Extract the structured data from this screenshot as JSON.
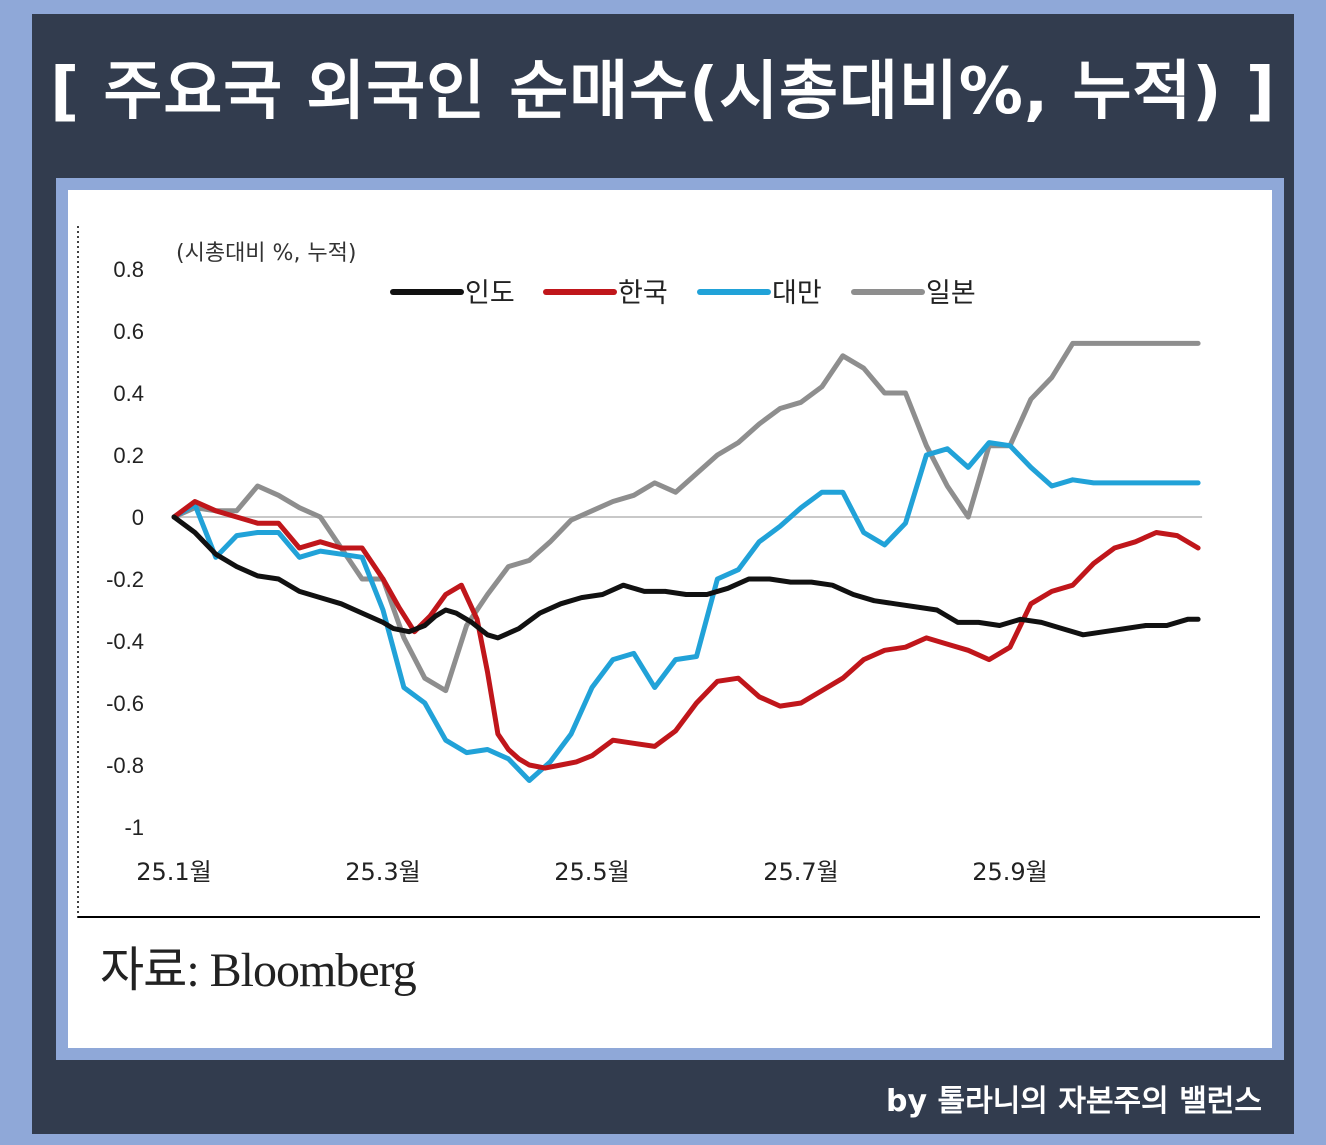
{
  "title": "[ 주요국 외국인 순매수(시총대비%, 누적) ]",
  "source": "자료: Bloomberg",
  "credit": "by 톨라니의 자본주의 밸런스",
  "chart_data": {
    "type": "line",
    "title": "",
    "unit_label": "(시총대비 %, 누적)",
    "ylim": [
      -1,
      0.8
    ],
    "y_ticks": [
      0.8,
      0.6,
      0.4,
      0.2,
      0,
      -0.2,
      -0.4,
      -0.6,
      -0.8,
      -1
    ],
    "y_tick_labels": [
      "0.8",
      "0.6",
      "0.4",
      "0.2",
      "0",
      "-0.2",
      "-0.4",
      "-0.6",
      "-0.8",
      "-1"
    ],
    "x_ticks": [
      0,
      2,
      4,
      6,
      8
    ],
    "x_tick_labels": [
      "25.1월",
      "25.3월",
      "25.5월",
      "25.7월",
      "25.9월"
    ],
    "xlim": [
      0,
      9.8
    ],
    "x_unit": "months since 25.1월",
    "zero_line": true,
    "legend": "top",
    "series": [
      {
        "name": "인도",
        "color": "#111111",
        "x": [
          0,
          0.2,
          0.4,
          0.6,
          0.8,
          1.0,
          1.2,
          1.4,
          1.6,
          1.8,
          2.0,
          2.1,
          2.25,
          2.4,
          2.5,
          2.6,
          2.7,
          2.85,
          3.0,
          3.1,
          3.3,
          3.5,
          3.7,
          3.9,
          4.1,
          4.3,
          4.5,
          4.7,
          4.9,
          5.1,
          5.3,
          5.5,
          5.7,
          5.9,
          6.1,
          6.3,
          6.5,
          6.7,
          6.9,
          7.1,
          7.3,
          7.5,
          7.7,
          7.9,
          8.1,
          8.3,
          8.5,
          8.7,
          8.9,
          9.1,
          9.3,
          9.5,
          9.7,
          9.8
        ],
        "y": [
          0,
          -0.05,
          -0.12,
          -0.16,
          -0.19,
          -0.2,
          -0.24,
          -0.26,
          -0.28,
          -0.31,
          -0.34,
          -0.36,
          -0.37,
          -0.35,
          -0.32,
          -0.3,
          -0.31,
          -0.34,
          -0.38,
          -0.39,
          -0.36,
          -0.31,
          -0.28,
          -0.26,
          -0.25,
          -0.22,
          -0.24,
          -0.24,
          -0.25,
          -0.25,
          -0.23,
          -0.2,
          -0.2,
          -0.21,
          -0.21,
          -0.22,
          -0.25,
          -0.27,
          -0.28,
          -0.29,
          -0.3,
          -0.34,
          -0.34,
          -0.35,
          -0.33,
          -0.34,
          -0.36,
          -0.38,
          -0.37,
          -0.36,
          -0.35,
          -0.35,
          -0.33,
          -0.33
        ]
      },
      {
        "name": "한국",
        "color": "#c0161b",
        "x": [
          0,
          0.2,
          0.4,
          0.6,
          0.8,
          1.0,
          1.2,
          1.4,
          1.6,
          1.8,
          2.0,
          2.15,
          2.3,
          2.45,
          2.6,
          2.75,
          2.9,
          3.0,
          3.1,
          3.2,
          3.3,
          3.4,
          3.55,
          3.7,
          3.85,
          4.0,
          4.2,
          4.4,
          4.6,
          4.8,
          5.0,
          5.2,
          5.4,
          5.6,
          5.8,
          6.0,
          6.2,
          6.4,
          6.6,
          6.8,
          7.0,
          7.2,
          7.4,
          7.6,
          7.8,
          8.0,
          8.2,
          8.4,
          8.6,
          8.8,
          9.0,
          9.2,
          9.4,
          9.6,
          9.8
        ],
        "y": [
          0,
          0.05,
          0.02,
          0.0,
          -0.02,
          -0.02,
          -0.1,
          -0.08,
          -0.1,
          -0.1,
          -0.2,
          -0.29,
          -0.37,
          -0.32,
          -0.25,
          -0.22,
          -0.33,
          -0.5,
          -0.7,
          -0.75,
          -0.78,
          -0.8,
          -0.81,
          -0.8,
          -0.79,
          -0.77,
          -0.72,
          -0.73,
          -0.74,
          -0.69,
          -0.6,
          -0.53,
          -0.52,
          -0.58,
          -0.61,
          -0.6,
          -0.56,
          -0.52,
          -0.46,
          -0.43,
          -0.42,
          -0.39,
          -0.41,
          -0.43,
          -0.46,
          -0.42,
          -0.28,
          -0.24,
          -0.22,
          -0.15,
          -0.1,
          -0.08,
          -0.05,
          -0.06,
          -0.1
        ]
      },
      {
        "name": "대만",
        "color": "#21a2d8",
        "x": [
          0,
          0.2,
          0.4,
          0.6,
          0.8,
          1.0,
          1.2,
          1.4,
          1.6,
          1.8,
          2.0,
          2.2,
          2.4,
          2.6,
          2.8,
          3.0,
          3.2,
          3.4,
          3.6,
          3.8,
          4.0,
          4.2,
          4.4,
          4.6,
          4.8,
          5.0,
          5.2,
          5.4,
          5.6,
          5.8,
          6.0,
          6.2,
          6.4,
          6.6,
          6.8,
          7.0,
          7.2,
          7.4,
          7.6,
          7.8,
          8.0,
          8.2,
          8.4,
          8.6,
          8.8,
          9.0,
          9.2,
          9.4,
          9.6,
          9.8
        ],
        "y": [
          0,
          0.04,
          -0.13,
          -0.06,
          -0.05,
          -0.05,
          -0.13,
          -0.11,
          -0.12,
          -0.13,
          -0.3,
          -0.55,
          -0.6,
          -0.72,
          -0.76,
          -0.75,
          -0.78,
          -0.85,
          -0.79,
          -0.7,
          -0.55,
          -0.46,
          -0.44,
          -0.55,
          -0.46,
          -0.45,
          -0.2,
          -0.17,
          -0.08,
          -0.03,
          0.03,
          0.08,
          0.08,
          -0.05,
          -0.09,
          -0.02,
          0.2,
          0.22,
          0.16,
          0.24,
          0.23,
          0.16,
          0.1,
          0.12,
          0.11,
          0.11,
          0.11,
          0.11,
          0.11,
          0.11
        ]
      },
      {
        "name": "일본",
        "color": "#8e8e8e",
        "x": [
          0,
          0.2,
          0.4,
          0.6,
          0.8,
          1.0,
          1.2,
          1.4,
          1.6,
          1.8,
          2.0,
          2.2,
          2.4,
          2.6,
          2.8,
          3.0,
          3.2,
          3.4,
          3.6,
          3.8,
          4.0,
          4.2,
          4.4,
          4.6,
          4.8,
          5.0,
          5.2,
          5.4,
          5.6,
          5.8,
          6.0,
          6.2,
          6.4,
          6.6,
          6.8,
          7.0,
          7.2,
          7.4,
          7.6,
          7.8,
          8.0,
          8.2,
          8.4,
          8.6,
          8.8,
          9.0,
          9.2,
          9.4,
          9.6,
          9.8
        ],
        "y": [
          0,
          0.03,
          0.02,
          0.02,
          0.1,
          0.07,
          0.03,
          0.0,
          -0.1,
          -0.2,
          -0.2,
          -0.39,
          -0.52,
          -0.56,
          -0.35,
          -0.25,
          -0.16,
          -0.14,
          -0.08,
          -0.01,
          0.02,
          0.05,
          0.07,
          0.11,
          0.08,
          0.14,
          0.2,
          0.24,
          0.3,
          0.35,
          0.37,
          0.42,
          0.52,
          0.48,
          0.4,
          0.4,
          0.23,
          0.1,
          0.0,
          0.23,
          0.23,
          0.38,
          0.45,
          0.56,
          0.56,
          0.56,
          0.56,
          0.56,
          0.56,
          0.56
        ]
      }
    ]
  }
}
